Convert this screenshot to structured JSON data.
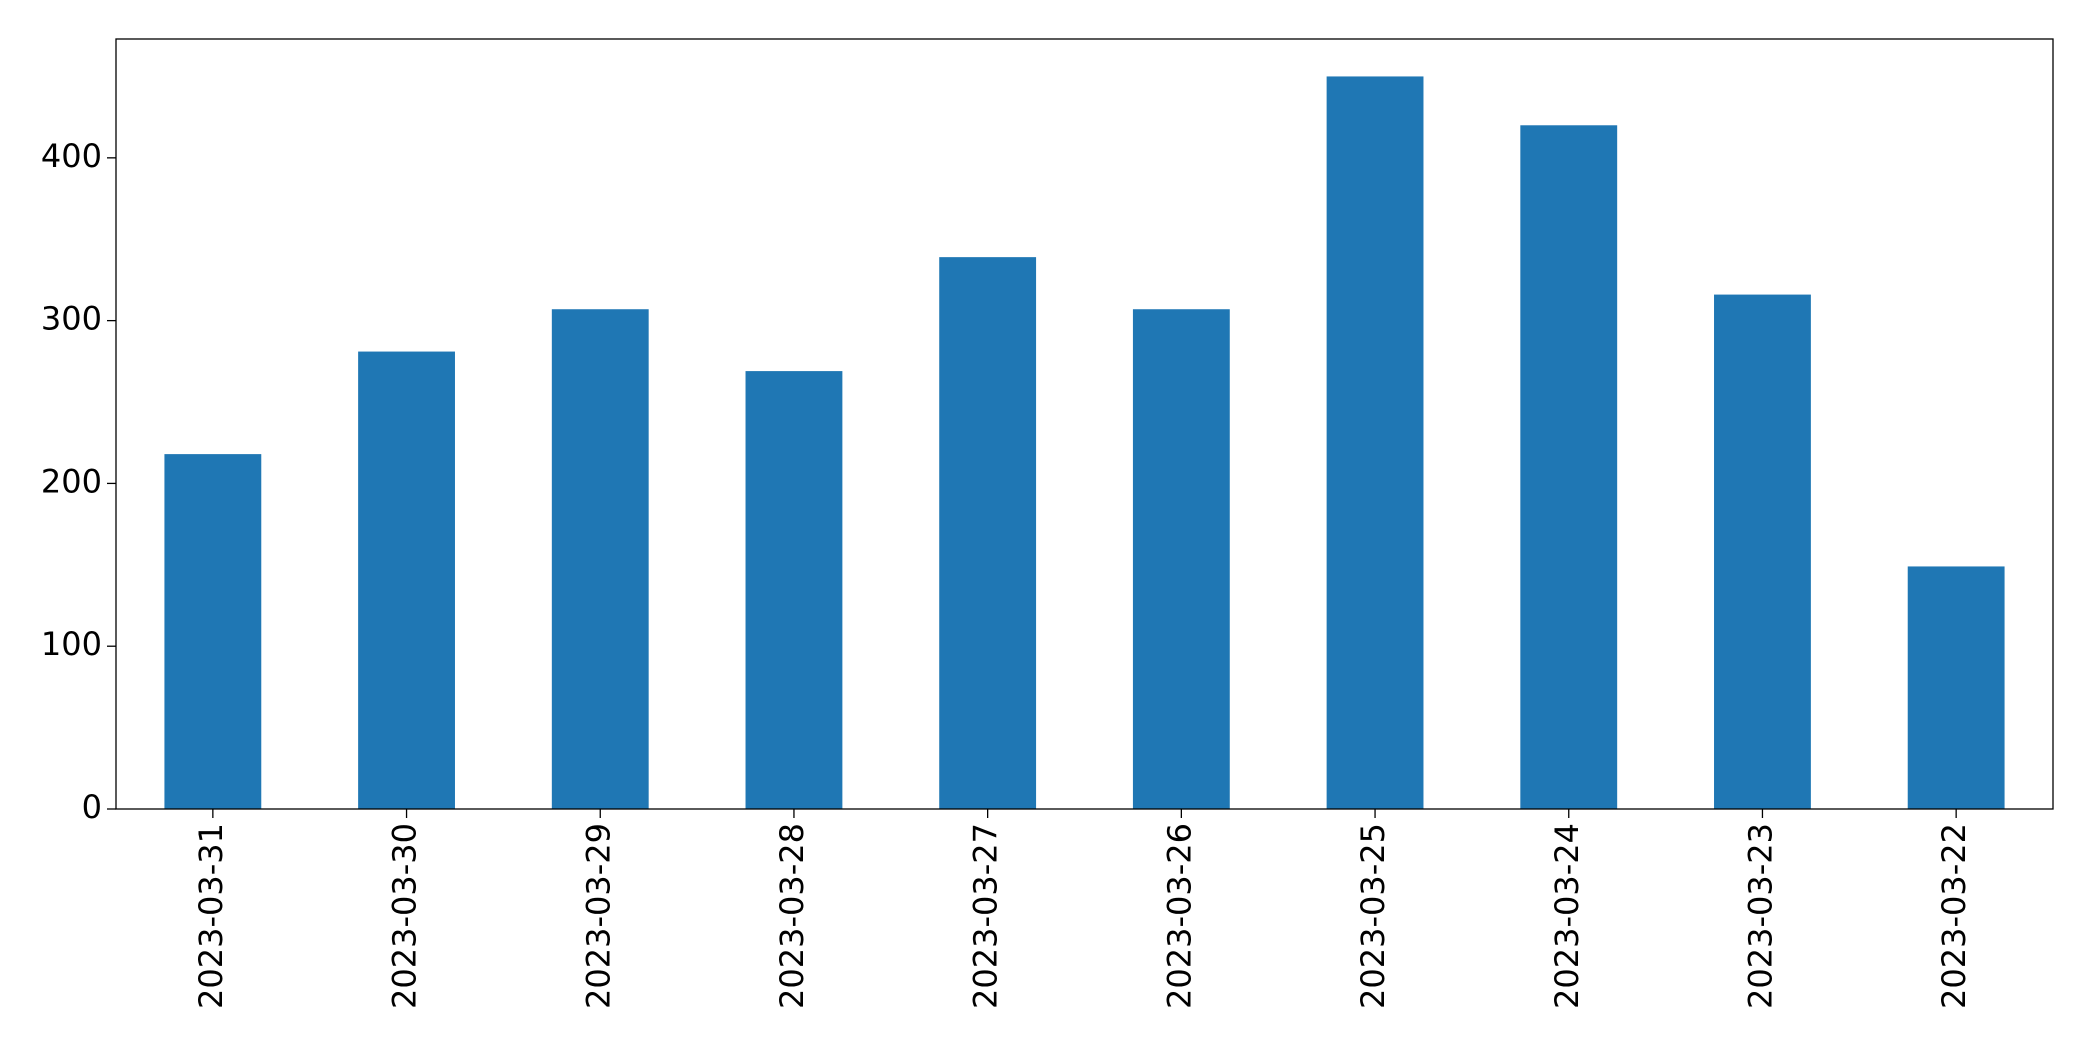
{
  "chart_data": {
    "type": "bar",
    "categories": [
      "2023-03-31",
      "2023-03-30",
      "2023-03-29",
      "2023-03-28",
      "2023-03-27",
      "2023-03-26",
      "2023-03-25",
      "2023-03-24",
      "2023-03-23",
      "2023-03-22"
    ],
    "values": [
      218,
      281,
      307,
      269,
      339,
      307,
      450,
      420,
      316,
      149
    ],
    "color": "#1f77b4",
    "ylim": [
      0,
      473
    ],
    "yticks": [
      0,
      100,
      200,
      300,
      400
    ],
    "grid": false
  }
}
